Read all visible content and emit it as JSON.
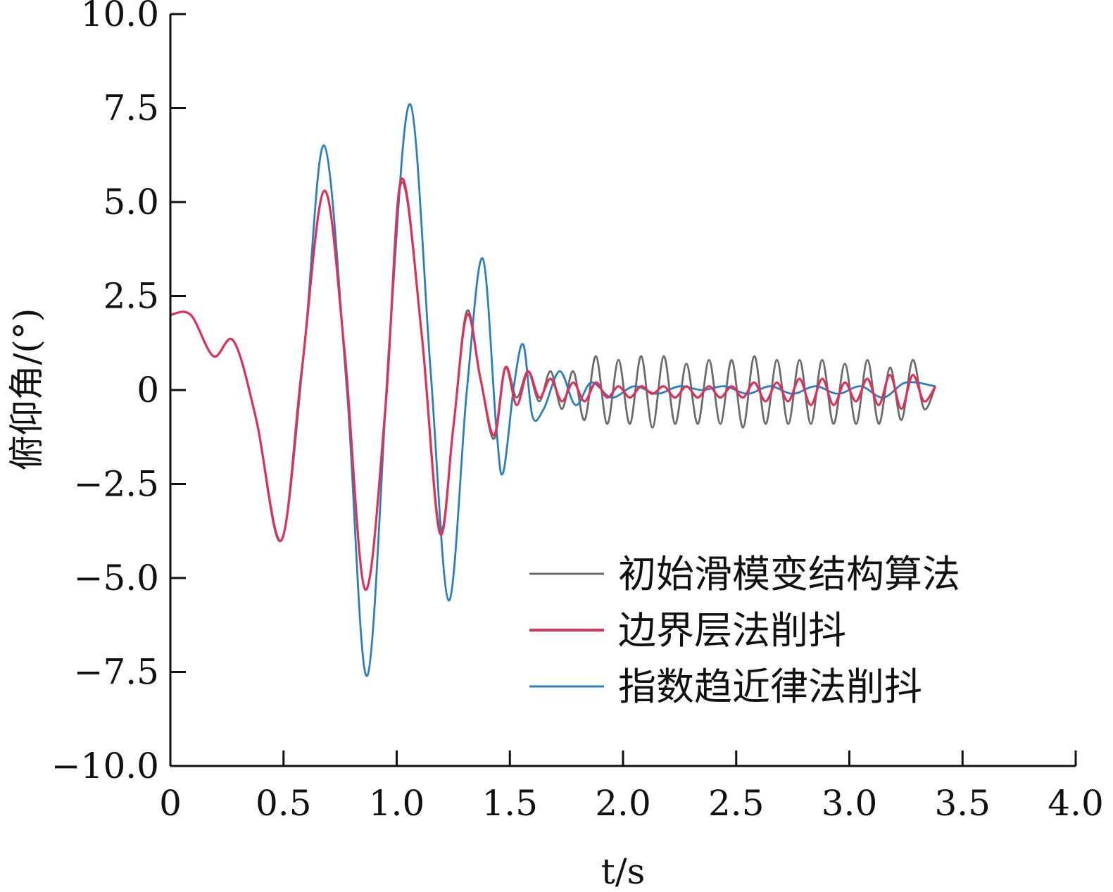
{
  "chart_data": {
    "type": "line",
    "title": "",
    "xlabel": "t/s",
    "ylabel": "俯仰角/(°)",
    "xlim": [
      0,
      4.0
    ],
    "ylim": [
      -10.0,
      10.0
    ],
    "x_ticks": [
      "0",
      "0.5",
      "1.0",
      "1.5",
      "2.0",
      "2.5",
      "3.0",
      "3.5",
      "4.0"
    ],
    "y_ticks": [
      "10.0",
      "7.5",
      "5.0",
      "2.5",
      "0",
      "−2.5",
      "−5.0",
      "−7.5",
      "−10.0"
    ],
    "grid": false,
    "legend_position": "lower-right",
    "series": [
      {
        "name": "初始滑模变结构算法",
        "color": "#6b6b6b",
        "x": [
          0,
          0.09,
          0.19,
          0.28,
          0.38,
          0.49,
          0.58,
          0.68,
          0.77,
          0.86,
          0.95,
          1.02,
          1.11,
          1.19,
          1.25,
          1.31,
          1.37,
          1.43,
          1.48,
          1.53,
          1.58,
          1.63,
          1.68,
          1.73,
          1.78,
          1.83,
          1.88,
          1.93,
          1.98,
          2.03,
          2.08,
          2.13,
          2.18,
          2.23,
          2.28,
          2.33,
          2.38,
          2.43,
          2.48,
          2.53,
          2.58,
          2.63,
          2.68,
          2.73,
          2.78,
          2.83,
          2.88,
          2.93,
          2.98,
          3.03,
          3.08,
          3.13,
          3.18,
          3.23,
          3.28,
          3.33,
          3.38
        ],
        "y": [
          2.0,
          2.0,
          0.9,
          1.3,
          -0.8,
          -4.0,
          0.5,
          5.3,
          1.0,
          -5.3,
          -0.5,
          5.5,
          1.5,
          -3.7,
          -1.0,
          2.1,
          0.3,
          -1.3,
          0.6,
          -0.2,
          0.5,
          -0.3,
          0.5,
          -0.5,
          0.5,
          -0.8,
          0.9,
          -0.9,
          0.8,
          -0.9,
          0.9,
          -1.0,
          0.9,
          -0.9,
          0.7,
          -0.9,
          0.8,
          -0.9,
          0.8,
          -1.0,
          0.9,
          -0.9,
          0.8,
          -0.9,
          0.8,
          -0.9,
          0.8,
          -0.9,
          0.7,
          -0.9,
          0.8,
          -0.9,
          0.6,
          -0.8,
          0.8,
          -0.5,
          0.1
        ]
      },
      {
        "name": "边界层法削抖",
        "color": "#e0305a",
        "x": [
          0,
          0.09,
          0.19,
          0.28,
          0.38,
          0.49,
          0.58,
          0.68,
          0.77,
          0.86,
          0.95,
          1.02,
          1.11,
          1.19,
          1.25,
          1.31,
          1.37,
          1.43,
          1.48,
          1.53,
          1.58,
          1.63,
          1.68,
          1.73,
          1.78,
          1.83,
          1.88,
          1.93,
          1.98,
          2.03,
          2.08,
          2.13,
          2.18,
          2.23,
          2.28,
          2.33,
          2.38,
          2.43,
          2.48,
          2.53,
          2.58,
          2.63,
          2.68,
          2.73,
          2.78,
          2.83,
          2.88,
          2.93,
          2.98,
          3.03,
          3.08,
          3.13,
          3.18,
          3.23,
          3.28,
          3.33,
          3.38
        ],
        "y": [
          2.0,
          2.0,
          0.9,
          1.3,
          -0.8,
          -4.0,
          0.5,
          5.3,
          1.0,
          -5.3,
          -0.5,
          5.6,
          1.5,
          -3.8,
          -1.0,
          2.0,
          0.3,
          -1.2,
          0.6,
          -0.4,
          0.5,
          -0.2,
          0.3,
          -0.3,
          0.2,
          -0.3,
          0.2,
          -0.2,
          0.1,
          -0.2,
          0.1,
          -0.1,
          0.1,
          -0.2,
          0.1,
          -0.2,
          0.1,
          -0.2,
          0.1,
          -0.2,
          0.2,
          -0.3,
          0.2,
          -0.3,
          0.3,
          -0.4,
          0.3,
          -0.4,
          0.2,
          -0.3,
          0.3,
          -0.4,
          0.4,
          -0.5,
          0.4,
          -0.3,
          0.1
        ]
      },
      {
        "name": "指数趋近律法削抖",
        "color": "#2a7fc0",
        "x": [
          0,
          0.09,
          0.19,
          0.28,
          0.38,
          0.49,
          0.59,
          0.68,
          0.78,
          0.87,
          0.97,
          1.06,
          1.15,
          1.23,
          1.31,
          1.38,
          1.44,
          1.47,
          1.52,
          1.56,
          1.6,
          1.65,
          1.72,
          1.79,
          1.86,
          1.95,
          2.05,
          2.15,
          2.25,
          2.35,
          2.45,
          2.55,
          2.65,
          2.75,
          2.85,
          2.95,
          3.05,
          3.15,
          3.25,
          3.38
        ],
        "y": [
          2.0,
          2.0,
          0.9,
          1.3,
          -0.8,
          -4.0,
          1.0,
          6.5,
          0.0,
          -7.6,
          1.5,
          7.6,
          0.5,
          -5.6,
          0.0,
          3.5,
          -1.0,
          -2.2,
          0.2,
          1.2,
          -0.7,
          -0.5,
          0.5,
          -0.4,
          0.2,
          -0.2,
          0.1,
          -0.1,
          0.1,
          0.0,
          0.1,
          -0.1,
          0.1,
          -0.1,
          0.1,
          -0.1,
          0.1,
          -0.2,
          0.2,
          0.1
        ]
      }
    ]
  }
}
